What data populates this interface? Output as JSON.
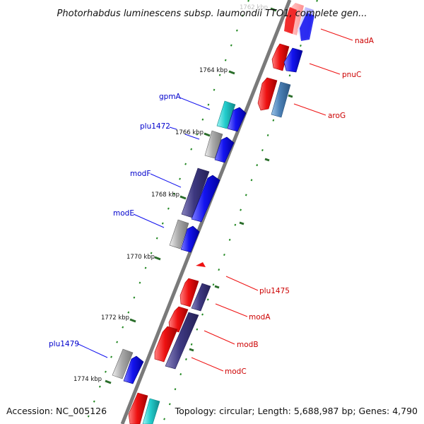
{
  "title": "Photorhabdus luminescens subsp. laumondii TTO1, complete gen...",
  "footer": {
    "accession": "Accession: NC_005126",
    "summary": "Topology: circular; Length: 5,688,987 bp; Genes: 4,790"
  },
  "scale_labels": [
    "1762 kbp",
    "1764 kbp",
    "1766 kbp",
    "1768 kbp",
    "1770 kbp",
    "1772 kbp",
    "1774 kbp"
  ],
  "genes_left": [
    "gpmA",
    "plu1472",
    "modF",
    "modE",
    "plu1479"
  ],
  "genes_right": [
    "nadA",
    "pnuC",
    "aroG",
    "plu1475",
    "modA",
    "modB",
    "modC"
  ],
  "colors": {
    "backbone": "#7a7a7a",
    "forward_label": "#0000cc",
    "reverse_label": "#cc0000",
    "tick": "#228822",
    "red_gene": "#ee1111",
    "blue_gene": "#1111ee",
    "navy_gene": "#3d3880",
    "gray_gene": "#aaaaaa",
    "cyan_gene": "#22cccc",
    "steel_gene": "#4a7fb5"
  }
}
